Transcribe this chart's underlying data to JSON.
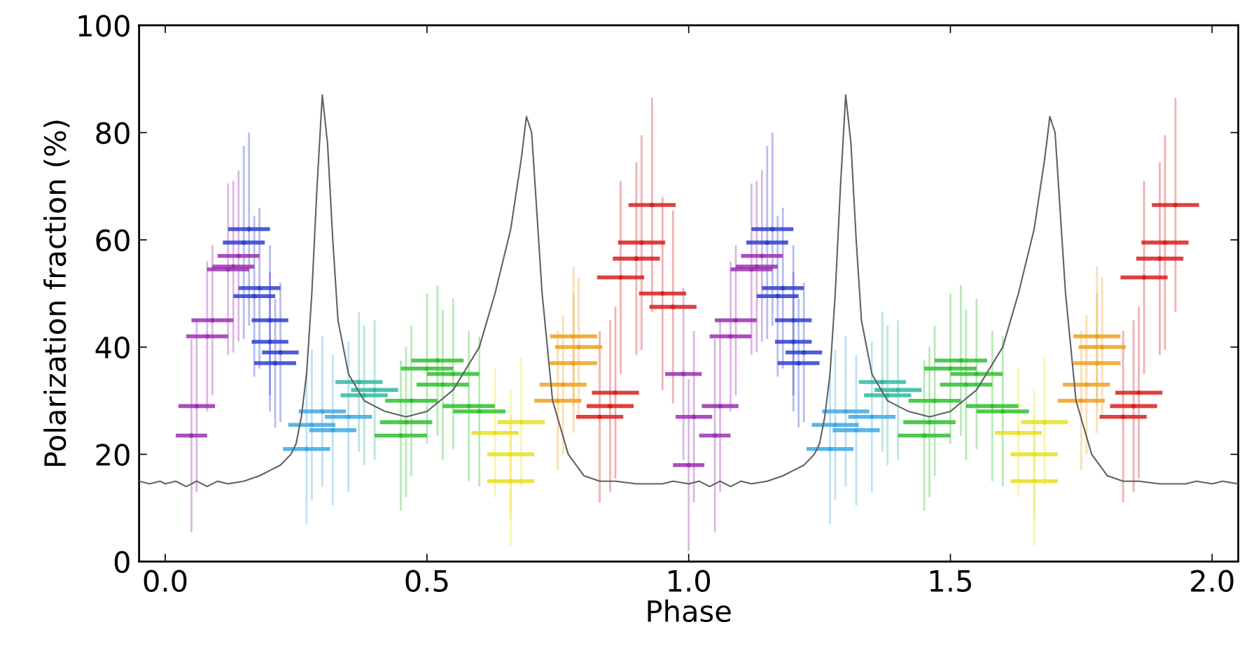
{
  "chart_data": {
    "type": "scatter",
    "xlabel": "Phase",
    "ylabel": "Polarization fraction (%)",
    "xlim": [
      -0.05,
      2.05
    ],
    "ylim": [
      0,
      100
    ],
    "xticks": [
      {
        "value": 0,
        "label": "0.0"
      },
      {
        "value": 0.5,
        "label": "0.5"
      },
      {
        "value": 1,
        "label": "1.0"
      },
      {
        "value": 1.5,
        "label": "1.5"
      },
      {
        "value": 2,
        "label": "2.0"
      }
    ],
    "yticks": [
      0,
      20,
      40,
      60,
      80,
      100
    ],
    "grid": false,
    "marker": "circle",
    "series": [
      {
        "type": "line",
        "marker": "none",
        "color": "#606060",
        "x": [
          -0.05,
          -0.03,
          -0.01,
          0.0,
          0.02,
          0.04,
          0.06,
          0.08,
          0.1,
          0.12,
          0.15,
          0.18,
          0.2,
          0.22,
          0.24,
          0.25,
          0.26,
          0.27,
          0.28,
          0.29,
          0.3,
          0.31,
          0.32,
          0.33,
          0.35,
          0.38,
          0.42,
          0.46,
          0.5,
          0.55,
          0.6,
          0.63,
          0.66,
          0.68,
          0.69,
          0.7,
          0.71,
          0.72,
          0.74,
          0.77,
          0.8,
          0.83,
          0.86,
          0.9,
          0.95,
          0.97,
          1.0,
          1.02,
          1.04,
          1.06,
          1.08,
          1.1,
          1.12,
          1.15,
          1.18,
          1.2,
          1.22,
          1.24,
          1.25,
          1.26,
          1.27,
          1.28,
          1.29,
          1.3,
          1.31,
          1.32,
          1.33,
          1.35,
          1.38,
          1.42,
          1.46,
          1.5,
          1.55,
          1.6,
          1.63,
          1.66,
          1.68,
          1.69,
          1.7,
          1.71,
          1.72,
          1.74,
          1.77,
          1.8,
          1.83,
          1.86,
          1.9,
          1.95,
          1.97,
          2.0,
          2.02,
          2.05
        ],
        "values": [
          15,
          14.5,
          15,
          14.5,
          15,
          14,
          15,
          14,
          15,
          14.5,
          15,
          16,
          17,
          18,
          20,
          22,
          27,
          35,
          50,
          70,
          87,
          78,
          60,
          45,
          35,
          30,
          28,
          27,
          28,
          32,
          40,
          50,
          62,
          75,
          83,
          80,
          65,
          50,
          30,
          20,
          16,
          15,
          15,
          14.5,
          14.5,
          15,
          14.5,
          15,
          14,
          15,
          14,
          15,
          14.5,
          15,
          16,
          17,
          18,
          20,
          22,
          27,
          35,
          50,
          70,
          87,
          78,
          60,
          45,
          35,
          30,
          28,
          27,
          28,
          32,
          40,
          50,
          62,
          75,
          83,
          80,
          65,
          50,
          30,
          20,
          16,
          15,
          15,
          14.5,
          14.5,
          15,
          14.5,
          15,
          14.5
        ]
      },
      {
        "color": "#9b30b0",
        "x": [
          0.05,
          0.06,
          0.08,
          0.09,
          0.12,
          0.13,
          0.14,
          0.99,
          1.0,
          1.01,
          1.05,
          1.06,
          1.08,
          1.09,
          1.12,
          1.13,
          1.14
        ],
        "values": [
          23.5,
          29,
          42,
          45,
          54.5,
          55,
          57,
          35,
          18,
          27,
          23.5,
          29,
          42,
          45,
          54.5,
          55,
          57
        ],
        "errors": [
          18,
          16,
          14,
          14,
          16,
          16,
          16,
          16,
          16,
          16,
          18,
          16,
          14,
          14,
          16,
          16,
          16
        ],
        "xerrors": [
          0.03,
          0.035,
          0.04,
          0.04,
          0.04,
          0.04,
          0.04,
          0.035,
          0.03,
          0.035,
          0.03,
          0.035,
          0.04,
          0.04,
          0.04,
          0.04,
          0.04
        ]
      },
      {
        "color": "#3040d0",
        "x": [
          0.15,
          0.16,
          0.17,
          0.18,
          0.2,
          0.2,
          0.21,
          0.22,
          1.15,
          1.16,
          1.17,
          1.18,
          1.2,
          1.2,
          1.21,
          1.22
        ],
        "values": [
          59.5,
          62,
          49.5,
          51,
          45,
          41,
          37,
          39,
          59.5,
          62,
          49.5,
          51,
          45,
          41,
          37,
          39
        ],
        "errors": [
          18,
          18,
          15,
          15,
          14,
          13,
          12,
          13,
          18,
          18,
          15,
          15,
          14,
          13,
          12,
          13
        ],
        "xerrors": [
          0.04,
          0.04,
          0.04,
          0.04,
          0.035,
          0.035,
          0.04,
          0.035,
          0.04,
          0.04,
          0.04,
          0.04,
          0.035,
          0.035,
          0.04,
          0.035
        ]
      },
      {
        "color": "#40a8e0",
        "x": [
          0.27,
          0.28,
          0.3,
          0.32,
          0.35,
          1.27,
          1.28,
          1.3,
          1.32,
          1.35
        ],
        "values": [
          21,
          25.5,
          28,
          24.5,
          27,
          21,
          25.5,
          28,
          24.5,
          27
        ],
        "errors": [
          14,
          14,
          14,
          14,
          14,
          14,
          14,
          14,
          14,
          14
        ],
        "xerrors": [
          0.045,
          0.045,
          0.045,
          0.045,
          0.045,
          0.045,
          0.045,
          0.045,
          0.045,
          0.045
        ]
      },
      {
        "color": "#30b8a0",
        "x": [
          0.37,
          0.38,
          0.4,
          1.37,
          1.38,
          1.4
        ],
        "values": [
          33.5,
          31,
          32,
          33.5,
          31,
          32
        ],
        "errors": [
          13,
          13,
          13,
          13,
          13,
          13
        ],
        "xerrors": [
          0.045,
          0.045,
          0.045,
          0.045,
          0.045,
          0.045
        ]
      },
      {
        "color": "#30c030",
        "x": [
          0.45,
          0.46,
          0.47,
          0.5,
          0.52,
          0.53,
          0.55,
          0.58,
          0.6,
          1.45,
          1.46,
          1.47,
          1.5,
          1.52,
          1.53,
          1.55,
          1.58,
          1.6
        ],
        "values": [
          23.5,
          26,
          30,
          36,
          37.5,
          33,
          35,
          29,
          28,
          23.5,
          26,
          30,
          36,
          37.5,
          33,
          35,
          29,
          28
        ],
        "errors": [
          14,
          14,
          14,
          14,
          14,
          14,
          14,
          14,
          14,
          14,
          14,
          14,
          14,
          14,
          14,
          14,
          14,
          14
        ],
        "xerrors": [
          0.05,
          0.05,
          0.05,
          0.05,
          0.05,
          0.05,
          0.05,
          0.05,
          0.05,
          0.05,
          0.05,
          0.05,
          0.05,
          0.05,
          0.05,
          0.05,
          0.05,
          0.05
        ]
      },
      {
        "color": "#e8e020",
        "x": [
          0.63,
          0.66,
          0.66,
          0.68,
          1.63,
          1.66,
          1.66,
          1.68
        ],
        "values": [
          24,
          20,
          15,
          26,
          24,
          20,
          15,
          26
        ],
        "errors": [
          12,
          12,
          12,
          12,
          12,
          12,
          12,
          12
        ],
        "xerrors": [
          0.045,
          0.045,
          0.045,
          0.045,
          0.045,
          0.045,
          0.045,
          0.045
        ]
      },
      {
        "color": "#f0a020",
        "x": [
          0.75,
          0.76,
          0.78,
          0.78,
          0.79,
          1.75,
          1.76,
          1.78,
          1.78,
          1.79
        ],
        "values": [
          30,
          33,
          37,
          42,
          40,
          30,
          33,
          37,
          42,
          40
        ],
        "errors": [
          13,
          13,
          13,
          13,
          13,
          13,
          13,
          13,
          13,
          13
        ],
        "xerrors": [
          0.045,
          0.045,
          0.045,
          0.045,
          0.045,
          0.045,
          0.045,
          0.045,
          0.045,
          0.045
        ]
      },
      {
        "color": "#d82020",
        "x": [
          0.83,
          0.85,
          0.86,
          0.87,
          0.9,
          0.91,
          0.93,
          0.95,
          0.97,
          1.83,
          1.85,
          1.86,
          1.87,
          1.9,
          1.91,
          1.93
        ],
        "values": [
          27,
          29,
          31.5,
          53,
          56.5,
          59.5,
          66.5,
          50,
          47.5,
          27,
          29,
          31.5,
          53,
          56.5,
          59.5,
          66.5
        ],
        "errors": [
          16,
          16,
          16,
          18,
          18,
          20,
          20,
          18,
          18,
          16,
          16,
          16,
          18,
          18,
          20,
          20
        ],
        "xerrors": [
          0.045,
          0.045,
          0.045,
          0.045,
          0.045,
          0.045,
          0.045,
          0.045,
          0.045,
          0.045,
          0.045,
          0.045,
          0.045,
          0.045,
          0.045,
          0.045
        ]
      }
    ]
  }
}
